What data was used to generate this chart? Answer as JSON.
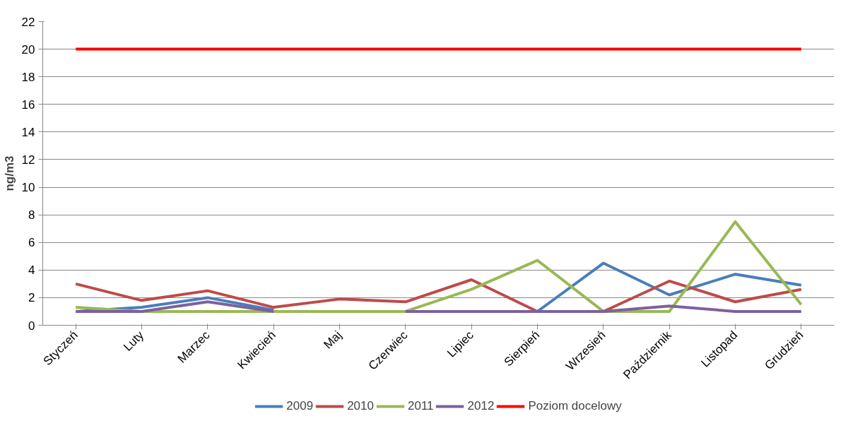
{
  "chart_data": {
    "type": "line",
    "ylabel": "ng/m3",
    "categories": [
      "Styczeń",
      "Luty",
      "Marzec",
      "Kwiecień",
      "Maj",
      "Czerwiec",
      "Lipiec",
      "Sierpień",
      "Wrzesień",
      "Październik",
      "Listopad",
      "Grudzień"
    ],
    "series": [
      {
        "name": "2009",
        "color": "#4a7ebb",
        "values": [
          1.0,
          1.3,
          2.0,
          1.1,
          null,
          null,
          null,
          1.0,
          4.5,
          2.2,
          3.7,
          2.9
        ]
      },
      {
        "name": "2010",
        "color": "#be4b48",
        "values": [
          3.0,
          1.8,
          2.5,
          1.3,
          1.9,
          1.7,
          3.3,
          1.0,
          1.0,
          3.2,
          1.7,
          2.6
        ]
      },
      {
        "name": "2011",
        "color": "#98b954",
        "values": [
          1.3,
          1.0,
          1.0,
          1.0,
          1.0,
          1.0,
          2.6,
          4.7,
          1.0,
          1.0,
          7.5,
          1.5
        ]
      },
      {
        "name": "2012",
        "color": "#7d60a0",
        "values": [
          1.0,
          1.0,
          1.7,
          1.0,
          null,
          1.0,
          1.0,
          1.0,
          1.0,
          1.4,
          1.0,
          1.0
        ]
      },
      {
        "name": "Poziom docelowy",
        "color": "#ff0000",
        "values": [
          20,
          20,
          20,
          20,
          20,
          20,
          20,
          20,
          20,
          20,
          20,
          20
        ]
      }
    ],
    "ylim": [
      0,
      22
    ],
    "yticks": [
      0,
      2,
      4,
      6,
      8,
      10,
      12,
      14,
      16,
      18,
      20,
      22
    ],
    "grid": "y",
    "legend": "bottom",
    "marker": "none",
    "line_style": "solid"
  }
}
